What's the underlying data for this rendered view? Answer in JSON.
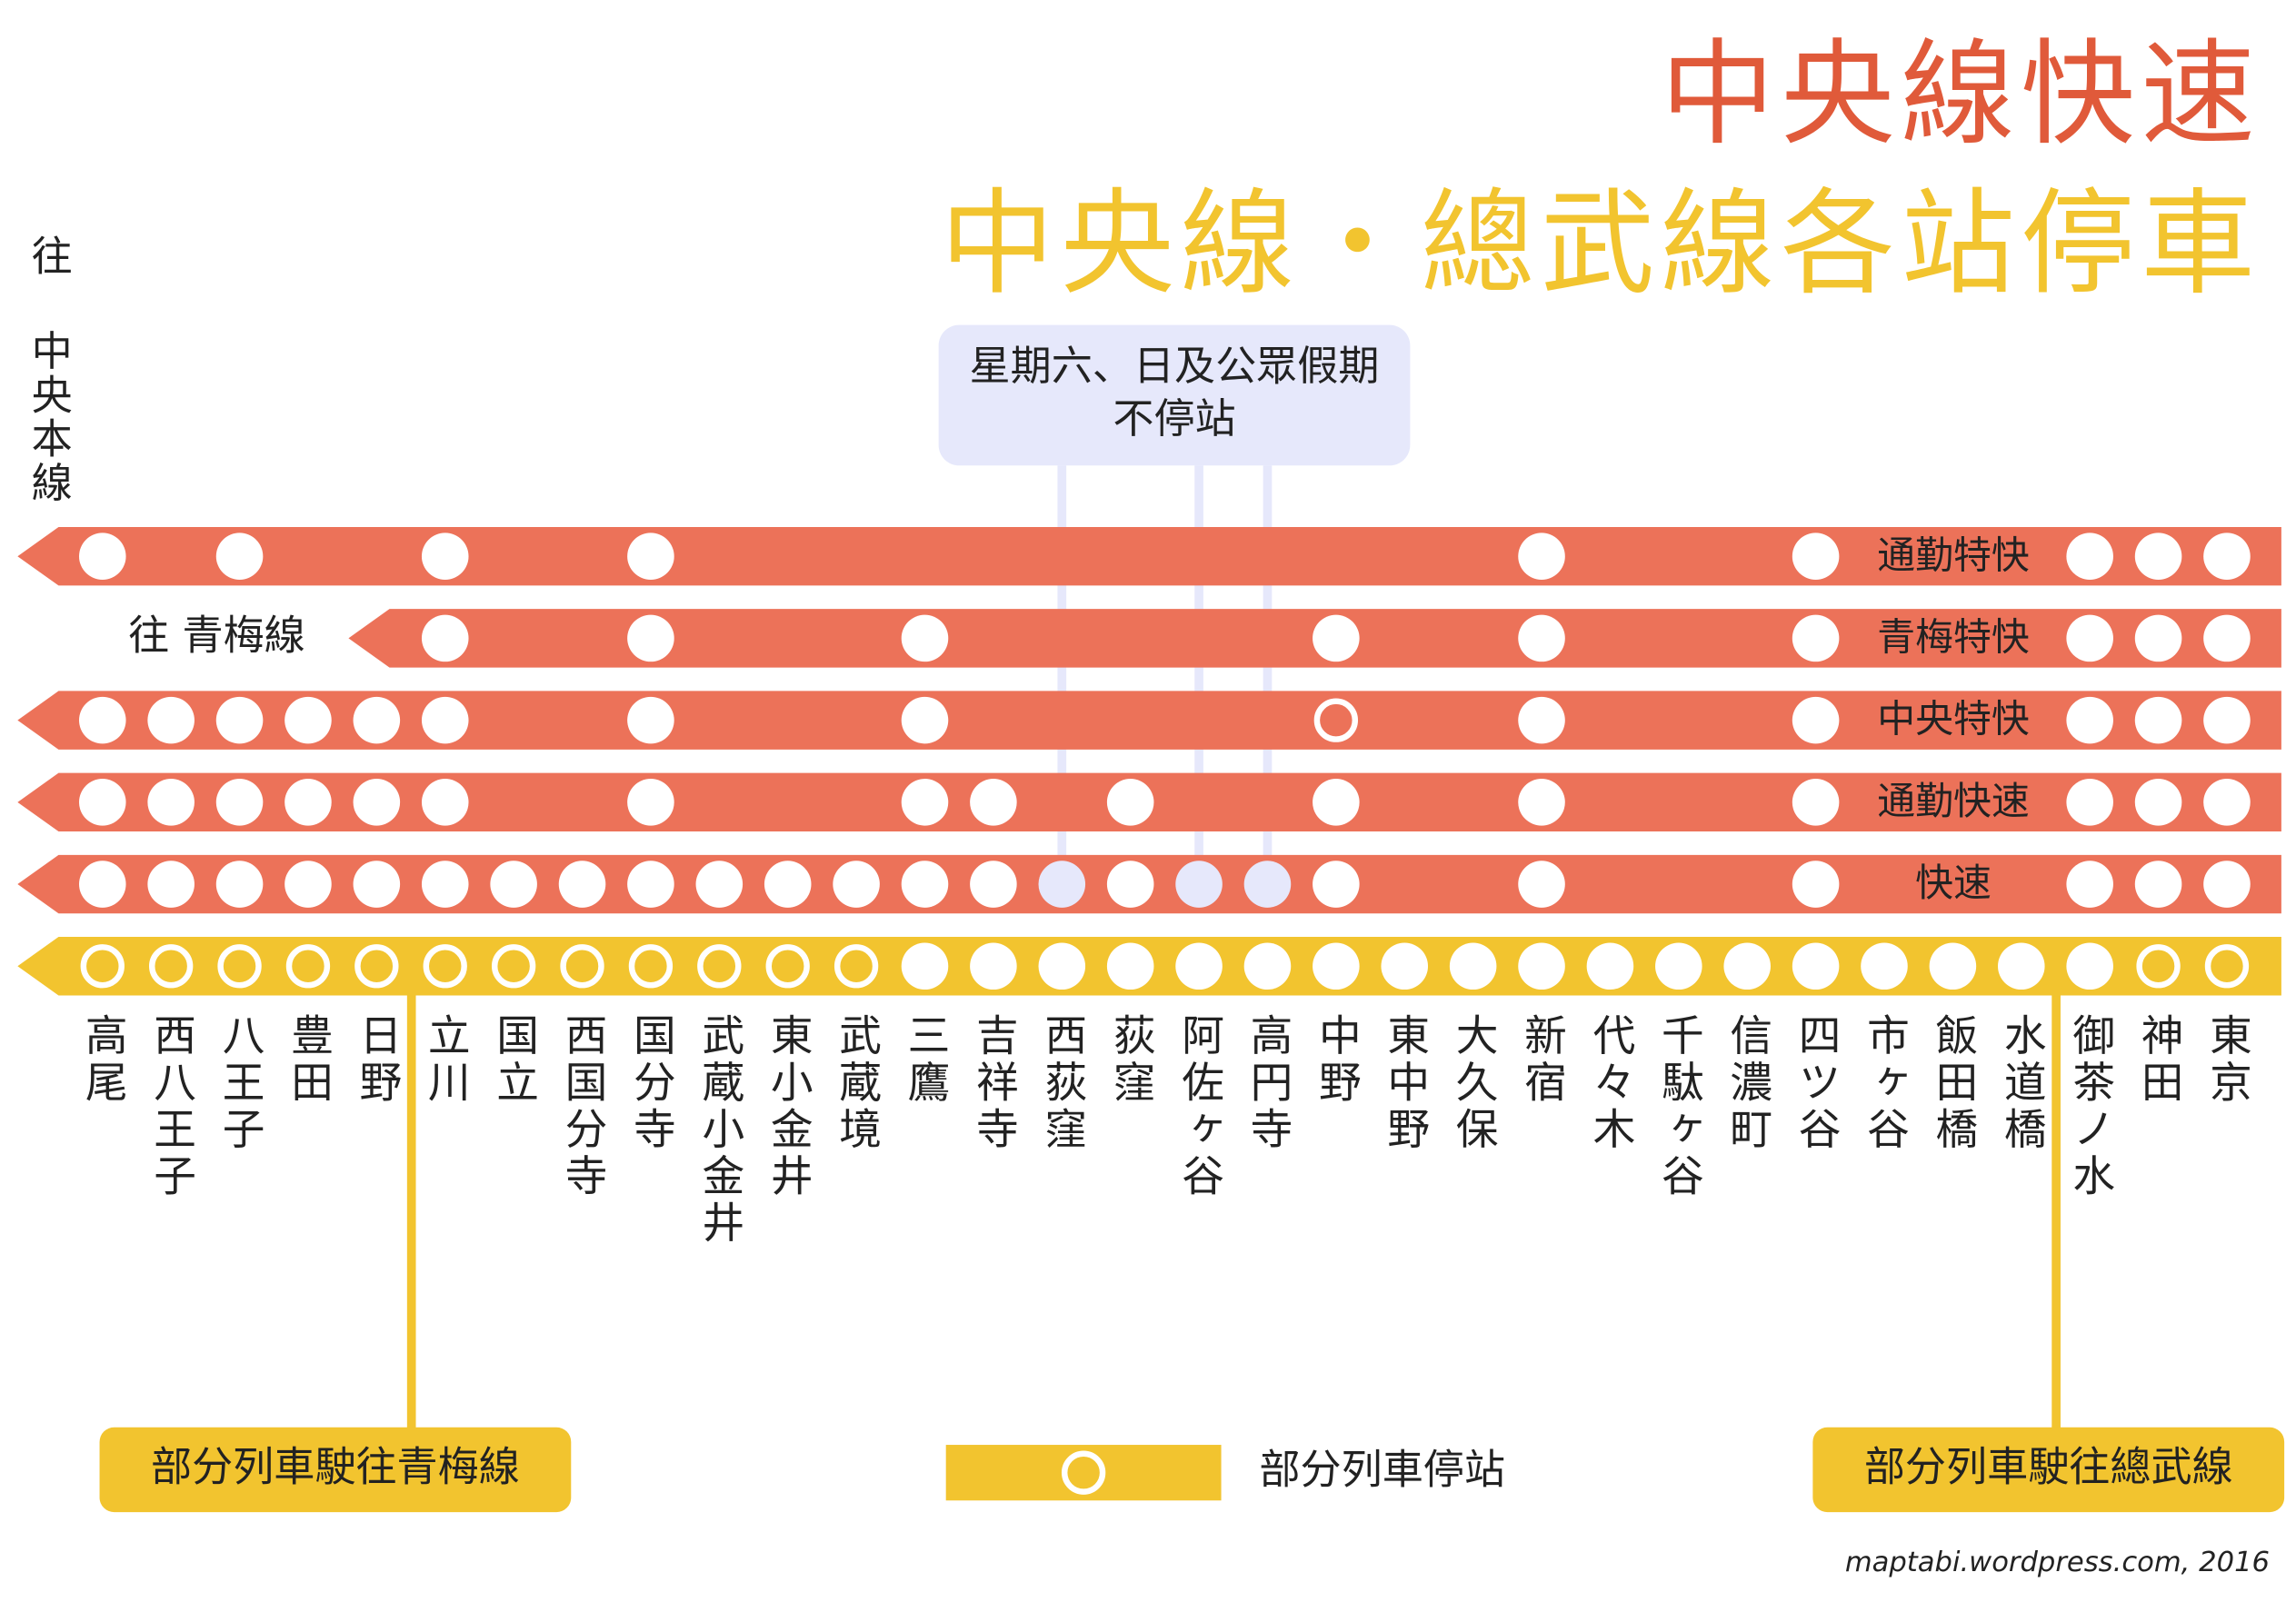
{
  "header": {
    "title": "中央線快速",
    "subtitle": "中央線・總武線各站停車"
  },
  "origin_note": "往 中央本線",
  "notice": {
    "lines": [
      "星期六、日及公眾假期",
      "不停站"
    ],
    "stations": [
      14,
      16,
      17
    ]
  },
  "stations": [
    "高尾",
    "西八王子",
    "八王子",
    "豊田",
    "日野",
    "立川",
    "国立",
    "西国分寺",
    "国分寺",
    "武蔵小金井",
    "東小金井",
    "武蔵境",
    "三鷹",
    "吉祥寺",
    "西荻窪",
    "荻窪",
    "阿佐ヶ谷",
    "高円寺",
    "中野",
    "東中野",
    "大久保",
    "新宿",
    "代々木",
    "千駄ヶ谷",
    "信濃町",
    "四ツ谷",
    "市ヶ谷",
    "飯田橋",
    "水道橋",
    "御茶ノ水",
    "神田",
    "東京"
  ],
  "services": [
    {
      "name": "通勤特快",
      "color": "#ec7259",
      "stops": [
        0,
        2,
        5,
        8,
        21,
        25,
        29,
        30,
        31
      ]
    },
    {
      "name": "青梅特快",
      "color": "#ec7259",
      "destination_note": "往 青梅線",
      "stops": [
        5,
        8,
        12,
        18,
        21,
        25,
        29,
        30,
        31
      ]
    },
    {
      "name": "中央特快",
      "color": "#ec7259",
      "stops": [
        0,
        1,
        2,
        3,
        4,
        5,
        8,
        12,
        21,
        25,
        29,
        30,
        31
      ],
      "partial_stops": [
        18
      ]
    },
    {
      "name": "通勤快速",
      "color": "#ec7259",
      "stops": [
        0,
        1,
        2,
        3,
        4,
        5,
        8,
        12,
        13,
        15,
        18,
        21,
        25,
        29,
        30,
        31
      ]
    },
    {
      "name": "快速",
      "color": "#ec7259",
      "stops": [
        0,
        1,
        2,
        3,
        4,
        5,
        6,
        7,
        8,
        9,
        10,
        11,
        12,
        13,
        15,
        18,
        21,
        25,
        29,
        30,
        31
      ],
      "weekday_only_stops": [
        14,
        16,
        17
      ]
    },
    {
      "color": "#f2c42f",
      "stops": [
        12,
        13,
        14,
        15,
        16,
        17,
        18,
        19,
        20,
        21,
        22,
        23,
        24,
        25,
        26,
        27,
        28,
        29
      ],
      "partial_stops": [
        0,
        1,
        2,
        3,
        4,
        5,
        6,
        7,
        8,
        9,
        10,
        11,
        30,
        31
      ]
    }
  ],
  "branches": [
    {
      "label": "部分列車駛往青梅線",
      "station": 5
    },
    {
      "label": "部分列車駛往總武線",
      "station": 29
    }
  ],
  "legend": {
    "label": "部分列車停站"
  },
  "credit": "maptabi.wordpress.com, 2016"
}
